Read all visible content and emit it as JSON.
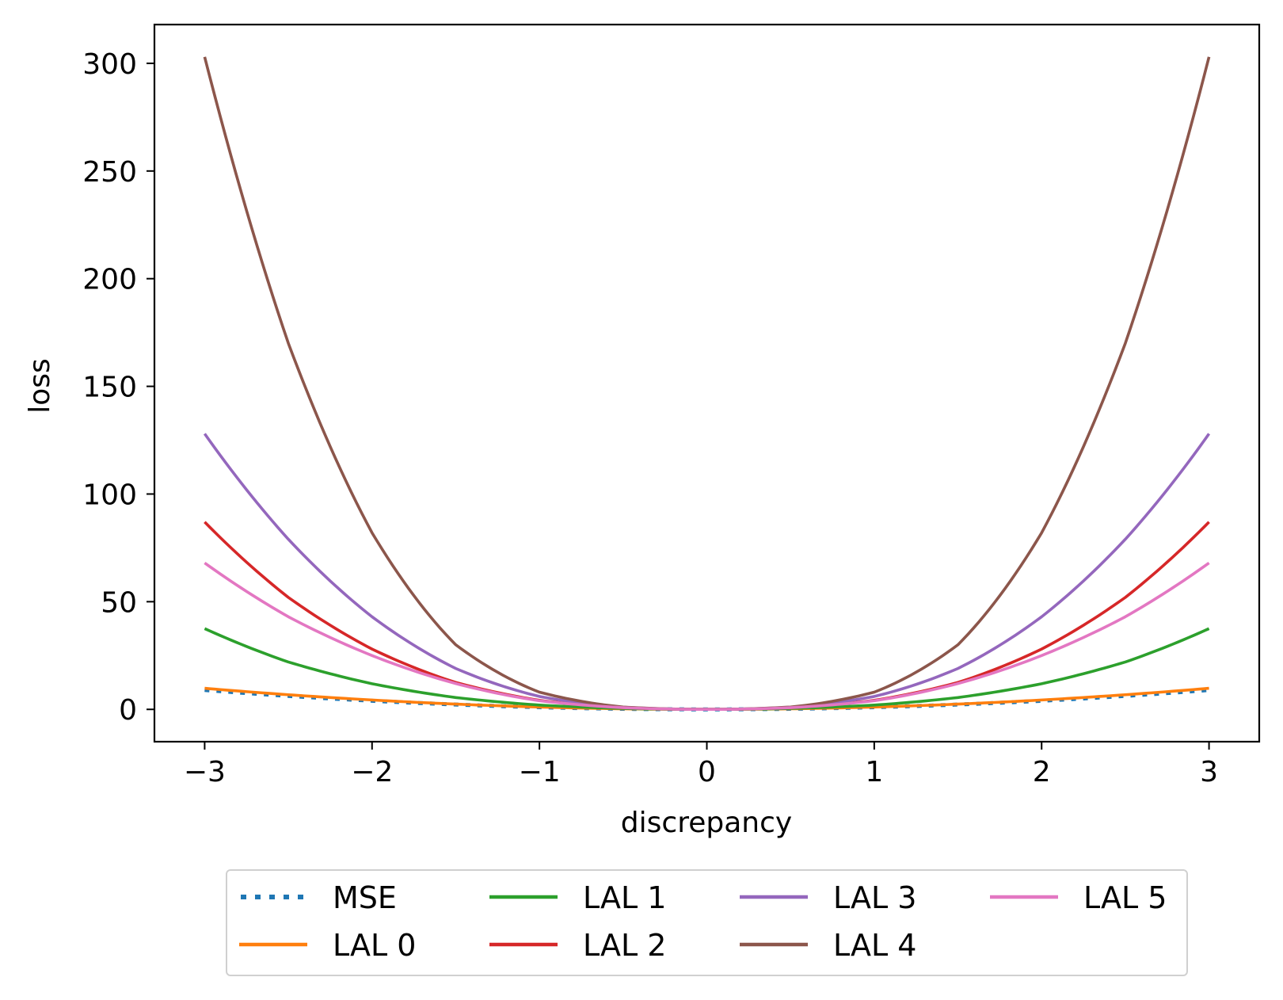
{
  "chart_data": {
    "type": "line",
    "title": "",
    "xlabel": "discrepancy",
    "ylabel": "loss",
    "xlim": [
      -3.3,
      3.3
    ],
    "ylim": [
      -15,
      318
    ],
    "xticks": [
      -3,
      -2,
      -1,
      0,
      1,
      2,
      3
    ],
    "xtick_labels": [
      "−3",
      "−2",
      "−1",
      "0",
      "1",
      "2",
      "3"
    ],
    "yticks": [
      0,
      50,
      100,
      150,
      200,
      250,
      300
    ],
    "ytick_labels": [
      "0",
      "50",
      "100",
      "150",
      "200",
      "250",
      "300"
    ],
    "grid": false,
    "legend_position": "below",
    "legend_columns": 4,
    "x": [
      -3.0,
      -2.5,
      -2.0,
      -1.5,
      -1.0,
      -0.5,
      0.0,
      0.5,
      1.0,
      1.5,
      2.0,
      2.5,
      3.0
    ],
    "series": [
      {
        "name": "MSE",
        "color": "#1f77b4",
        "style": "dotted",
        "values": [
          9.0,
          6.25,
          4.0,
          2.25,
          1.0,
          0.25,
          0.0,
          0.25,
          1.0,
          2.25,
          4.0,
          6.25,
          9.0
        ]
      },
      {
        "name": "LAL 0",
        "color": "#ff7f0e",
        "style": "solid",
        "values": [
          9.8,
          6.8,
          4.36,
          2.45,
          1.09,
          0.27,
          0.0,
          0.27,
          1.09,
          2.45,
          4.36,
          6.8,
          9.8
        ]
      },
      {
        "name": "LAL 1",
        "color": "#2ca02c",
        "style": "solid",
        "values": [
          37.5,
          22.0,
          11.9,
          5.5,
          2.0,
          0.45,
          0.0,
          0.45,
          2.0,
          5.5,
          11.9,
          22.0,
          37.5
        ]
      },
      {
        "name": "LAL 2",
        "color": "#d62728",
        "style": "solid",
        "values": [
          87.0,
          52.0,
          28.0,
          12.5,
          4.2,
          0.8,
          0.0,
          0.8,
          4.2,
          12.5,
          28.0,
          52.0,
          87.0
        ]
      },
      {
        "name": "LAL 3",
        "color": "#9467bd",
        "style": "solid",
        "values": [
          128.0,
          79.0,
          43.0,
          19.0,
          6.0,
          1.0,
          0.0,
          1.0,
          6.0,
          19.0,
          43.0,
          79.0,
          128.0
        ]
      },
      {
        "name": "LAL 4",
        "color": "#8c564b",
        "style": "solid",
        "values": [
          303.0,
          170.0,
          82.0,
          30.0,
          8.0,
          1.1,
          0.0,
          1.1,
          8.0,
          30.0,
          82.0,
          170.0,
          303.0
        ]
      },
      {
        "name": "LAL 5",
        "color": "#e377c2",
        "style": "solid",
        "values": [
          68.0,
          43.0,
          25.0,
          12.0,
          4.0,
          0.8,
          0.0,
          0.8,
          4.0,
          12.0,
          25.0,
          43.0,
          68.0
        ]
      }
    ]
  }
}
